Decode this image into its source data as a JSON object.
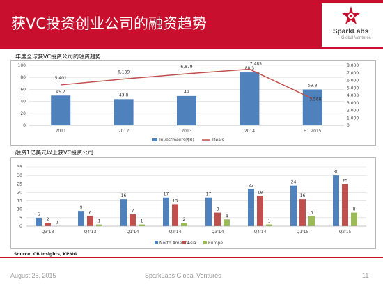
{
  "header": {
    "title": "获VC投资创业公司的融资趋势",
    "logo_name": "SparkLabs",
    "logo_sub": "Global Ventures"
  },
  "colors": {
    "title_bar": "#c8102e",
    "investments": "#4f81bd",
    "deals": "#c0504d",
    "north_america": "#4f81bd",
    "asia": "#c0504d",
    "europe": "#9bbb59"
  },
  "footer": {
    "source": "Source: CB Insights, KPMG",
    "date": "August 25, 2015",
    "company": "SparkLabs Global Ventures",
    "page_number": "11"
  },
  "chart_data": [
    {
      "type": "bar",
      "title": "年度全球获VC投资公司的融资趋势",
      "categories": [
        "2011",
        "2012",
        "2013",
        "2014",
        "H1 2015"
      ],
      "series": [
        {
          "name": "Investments($B)",
          "kind": "bar",
          "axis": "left",
          "values": [
            49.7,
            43.8,
            49,
            88.3,
            59.8
          ]
        },
        {
          "name": "Deals",
          "kind": "line",
          "axis": "right",
          "values": [
            5401,
            6189,
            6879,
            7485,
            3568
          ]
        }
      ],
      "value_labels": {
        "bars": [
          "49.7",
          "43.8",
          "49",
          "88.3",
          "59.8"
        ],
        "line": [
          "5,401",
          "6,189",
          "6,879",
          "7,485",
          "3,568"
        ]
      },
      "ylim_left": [
        0,
        100
      ],
      "ylim_right": [
        0,
        8000
      ],
      "yticks_left": [
        "0",
        "20",
        "40",
        "60",
        "80",
        "100"
      ],
      "yticks_right": [
        "0",
        "1,000",
        "2,000",
        "3,000",
        "4,000",
        "5,000",
        "6,000",
        "7,000",
        "8,000"
      ],
      "grid": true,
      "legend": "bottom"
    },
    {
      "type": "bar",
      "title": "融资1亿美元以上获VC投资公司",
      "categories": [
        "Q3'13",
        "Q4'13",
        "Q1'14",
        "Q2'14",
        "Q3'14",
        "Q4'14",
        "Q1'15",
        "Q2'15"
      ],
      "series": [
        {
          "name": "North America",
          "values": [
            5,
            9,
            16,
            17,
            17,
            22,
            24,
            30
          ]
        },
        {
          "name": "Asia",
          "values": [
            2,
            6,
            7,
            13,
            8,
            18,
            16,
            25
          ]
        },
        {
          "name": "Europe",
          "values": [
            0,
            1,
            1,
            2,
            4,
            1,
            6,
            8
          ]
        }
      ],
      "ylim": [
        0,
        35
      ],
      "yticks": [
        "0",
        "5",
        "10",
        "15",
        "20",
        "25",
        "30",
        "35"
      ],
      "grid": true,
      "legend": "bottom"
    }
  ]
}
